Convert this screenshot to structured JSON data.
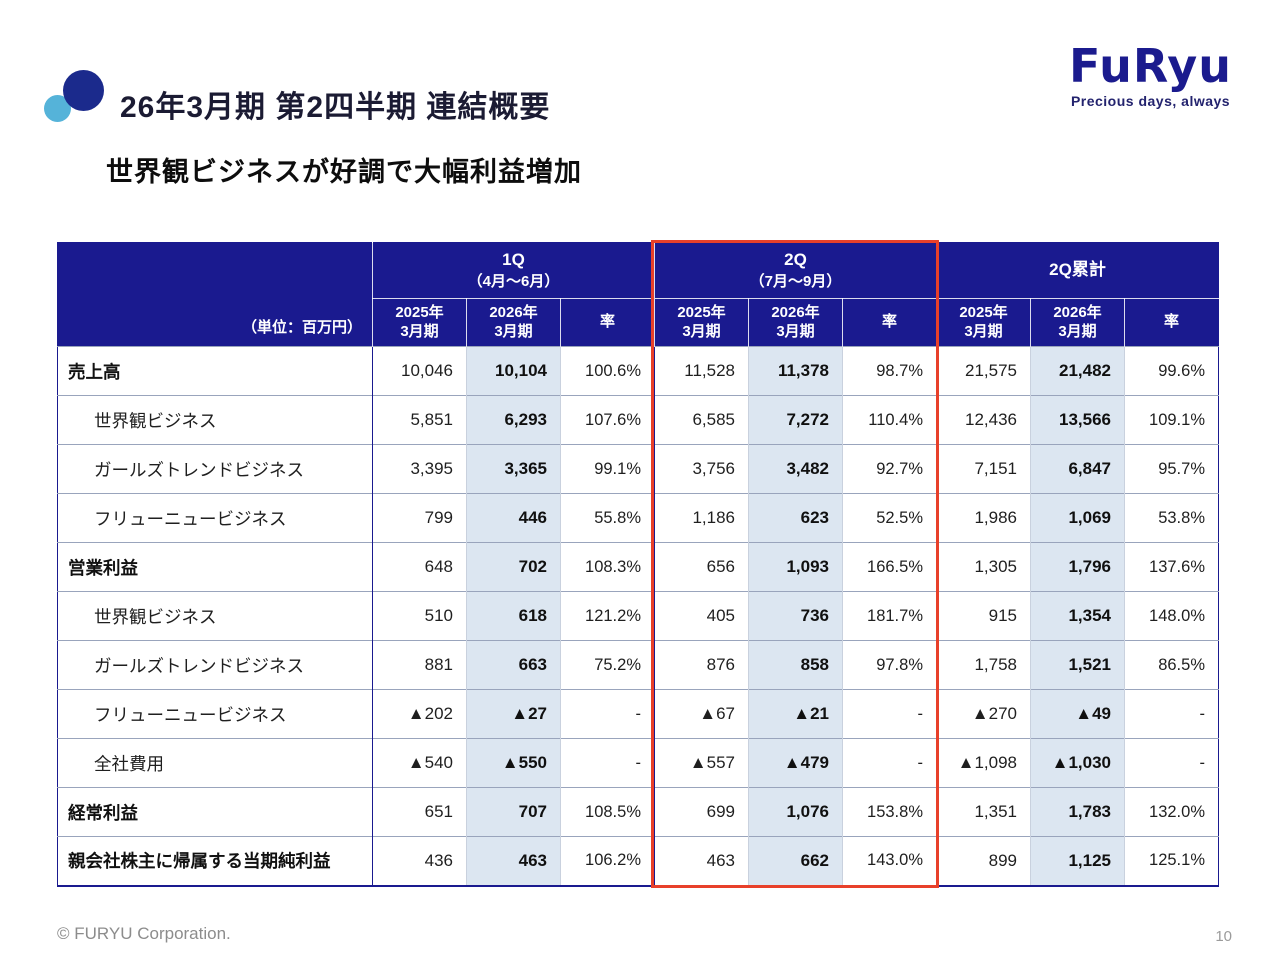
{
  "page": {
    "title": "26年3月期 第2四半期 連結概要",
    "subtitle": "世界観ビジネスが好調で大幅利益増加",
    "copyright": "© FURYU Corporation.",
    "page_number": "10"
  },
  "logo": {
    "brand": "FuRyu",
    "tagline": "Precious days, always"
  },
  "colors": {
    "header_navy": "#1a1a8f",
    "highlight_column_blue": "#dce6f1",
    "accent_red": "#e8402a",
    "dot_navy": "#1b2a8c",
    "dot_lightblue": "#55b3d9"
  },
  "table": {
    "unit_label": "（単位：百万円）",
    "groups": [
      {
        "title": "1Q",
        "subtitle": "（4月～6月）"
      },
      {
        "title": "2Q",
        "subtitle": "（7月～9月）"
      },
      {
        "title": "2Q累計"
      }
    ],
    "col_headers": [
      {
        "l1": "2025年",
        "l2": "3月期"
      },
      {
        "l1": "2026年",
        "l2": "3月期"
      },
      {
        "l1": "率"
      }
    ],
    "rows": [
      {
        "label": "売上高",
        "cells": [
          "10,046",
          "10,104",
          "100.6%",
          "11,528",
          "11,378",
          "98.7%",
          "21,575",
          "21,482",
          "99.6%"
        ]
      },
      {
        "label": "世界観ビジネス",
        "cells": [
          "5,851",
          "6,293",
          "107.6%",
          "6,585",
          "7,272",
          "110.4%",
          "12,436",
          "13,566",
          "109.1%"
        ]
      },
      {
        "label": "ガールズトレンドビジネス",
        "cells": [
          "3,395",
          "3,365",
          "99.1%",
          "3,756",
          "3,482",
          "92.7%",
          "7,151",
          "6,847",
          "95.7%"
        ]
      },
      {
        "label": "フリューニュービジネス",
        "cells": [
          "799",
          "446",
          "55.8%",
          "1,186",
          "623",
          "52.5%",
          "1,986",
          "1,069",
          "53.8%"
        ]
      },
      {
        "label": "営業利益",
        "cells": [
          "648",
          "702",
          "108.3%",
          "656",
          "1,093",
          "166.5%",
          "1,305",
          "1,796",
          "137.6%"
        ]
      },
      {
        "label": "世界観ビジネス",
        "cells": [
          "510",
          "618",
          "121.2%",
          "405",
          "736",
          "181.7%",
          "915",
          "1,354",
          "148.0%"
        ]
      },
      {
        "label": "ガールズトレンドビジネス",
        "cells": [
          "881",
          "663",
          "75.2%",
          "876",
          "858",
          "97.8%",
          "1,758",
          "1,521",
          "86.5%"
        ]
      },
      {
        "label": "フリューニュービジネス",
        "cells": [
          "▲202",
          "▲27",
          "-",
          "▲67",
          "▲21",
          "-",
          "▲270",
          "▲49",
          "-"
        ]
      },
      {
        "label": "全社費用",
        "cells": [
          "▲540",
          "▲550",
          "-",
          "▲557",
          "▲479",
          "-",
          "▲1,098",
          "▲1,030",
          "-"
        ]
      },
      {
        "label": "経常利益",
        "cells": [
          "651",
          "707",
          "108.5%",
          "699",
          "1,076",
          "153.8%",
          "1,351",
          "1,783",
          "132.0%"
        ]
      },
      {
        "label": "親会社株主に帰属する当期純利益",
        "cells": [
          "436",
          "463",
          "106.2%",
          "463",
          "662",
          "143.0%",
          "899",
          "1,125",
          "125.1%"
        ]
      }
    ]
  }
}
